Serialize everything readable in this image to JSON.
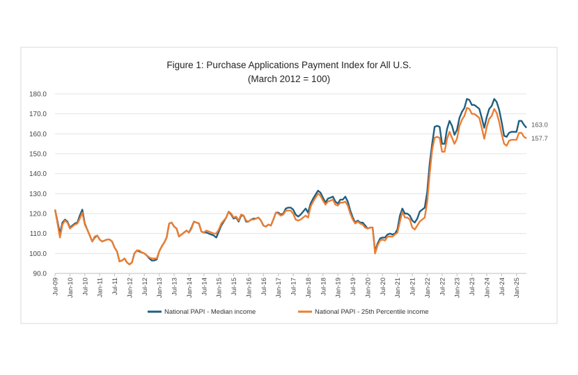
{
  "chart_data": {
    "type": "line",
    "title": "Figure 1: Purchase Applications Payment Index for All U.S.",
    "subtitle": "(March 2012 = 100)",
    "xlabel": "",
    "ylabel": "",
    "ylim": [
      90,
      180
    ],
    "yticks": [
      "90.0",
      "100.0",
      "110.0",
      "120.0",
      "130.0",
      "140.0",
      "150.0",
      "160.0",
      "170.0",
      "180.0"
    ],
    "xticks": [
      "Jul-09",
      "Jan-10",
      "Jul-10",
      "Jan-11",
      "Jul-11",
      "Jan-12",
      "Jul-12",
      "Jan-13",
      "Jul-13",
      "Jan-14",
      "Jul-14",
      "Jan-15",
      "Jul-15",
      "Jan-16",
      "Jul-16",
      "Jan-17",
      "Jul-17",
      "Jan-18",
      "Jul-18",
      "Jan-19",
      "Jul-19",
      "Jan-20",
      "Jul-20",
      "Jan-21",
      "Jul-21",
      "Jan-22",
      "Jul-22",
      "Jan-23",
      "Jul-23",
      "Jan-24",
      "Jul-24",
      "Jan-25"
    ],
    "x_start": "2009-07",
    "x_frequency": "monthly",
    "grid": true,
    "legend_position": "bottom",
    "series": [
      {
        "name": "National PAPI - Median income",
        "color": "#1f5f7f",
        "end_label": "163.0",
        "values": [
          122,
          116,
          110,
          115.5,
          117,
          116,
          113,
          114,
          115,
          115.5,
          119,
          122,
          115,
          112,
          109,
          106,
          108,
          109,
          107,
          106,
          106.5,
          107,
          107,
          106,
          103,
          101,
          96,
          96.5,
          97.5,
          95.5,
          94.5,
          95.5,
          100,
          101.5,
          101,
          100.5,
          100,
          99,
          97.5,
          96.5,
          96.5,
          97,
          101,
          103.5,
          105.5,
          108,
          115,
          115.5,
          113.5,
          112.5,
          108.5,
          109.5,
          110.5,
          111.5,
          110.5,
          113,
          116,
          115.5,
          115,
          111,
          110.5,
          110.5,
          110,
          109.5,
          109,
          108,
          111,
          114,
          116,
          118,
          121,
          119.5,
          117.5,
          118,
          116,
          119,
          119,
          116,
          116,
          117,
          117.5,
          117.5,
          118,
          116.5,
          114,
          113.5,
          114.5,
          114,
          117,
          120.5,
          120.5,
          119.5,
          120,
          122.5,
          123,
          123,
          122,
          119.5,
          118.5,
          119.5,
          121,
          122.5,
          120.5,
          125,
          127.5,
          129.5,
          131.5,
          130.5,
          128,
          125.5,
          127.5,
          128,
          128.5,
          126,
          125,
          127,
          127,
          128.5,
          126,
          121.5,
          118,
          115.5,
          116.5,
          115.5,
          115.5,
          114,
          112.5,
          113,
          113,
          101,
          105,
          107.5,
          108,
          108,
          109.5,
          110,
          109.5,
          110,
          112,
          119,
          122.5,
          120,
          120,
          119,
          116.5,
          115.5,
          117.5,
          121,
          122,
          123,
          131,
          145,
          155,
          163.5,
          164,
          163.5,
          155,
          155,
          162.5,
          166.5,
          164,
          159.5,
          162,
          168,
          171,
          173,
          177.5,
          177,
          174.5,
          174.5,
          173.5,
          172.5,
          168,
          163,
          168.5,
          172.5,
          174,
          177.5,
          176,
          172,
          166,
          159,
          158.5,
          160.5,
          161,
          161,
          161,
          166.5,
          166.5,
          164.5,
          163
        ]
      },
      {
        "name": "National PAPI - 25th Percentile income",
        "color": "#ed7d31",
        "end_label": "157.7",
        "values": [
          122,
          115,
          108,
          114.5,
          116.5,
          115.5,
          112.5,
          113.5,
          114.5,
          115,
          117.5,
          120.5,
          114.5,
          112,
          109,
          106,
          108.5,
          109,
          107,
          106,
          106.5,
          107,
          107,
          106,
          103,
          101,
          96,
          96.5,
          97.5,
          95.5,
          94.5,
          95.5,
          100,
          101.5,
          101.5,
          100.5,
          100,
          99,
          98,
          97.5,
          97.5,
          97.5,
          101,
          103.5,
          105.5,
          108,
          115,
          115.5,
          113.5,
          112.5,
          108.5,
          109.5,
          110.5,
          111.5,
          110.5,
          112.5,
          116,
          115.5,
          115,
          111,
          110.5,
          111.5,
          111,
          110.5,
          110,
          110,
          112,
          115,
          116.5,
          118,
          121,
          120,
          118,
          118.5,
          116.5,
          119.5,
          119,
          116.5,
          116,
          117,
          117,
          117.5,
          118,
          116.5,
          114,
          113.5,
          114.5,
          114,
          117,
          120.5,
          120,
          119,
          119.5,
          121.5,
          121.5,
          121.5,
          120,
          117,
          116.5,
          117,
          118,
          119,
          118,
          123.5,
          126,
          128,
          130,
          129,
          126.5,
          124.5,
          126,
          126.5,
          127,
          124.5,
          124,
          125.5,
          125.5,
          126,
          124,
          120,
          117,
          115,
          116,
          115,
          114.5,
          113,
          112.5,
          113,
          113,
          100,
          104,
          106.5,
          107,
          106.5,
          108.5,
          108.5,
          108.5,
          109.5,
          110.5,
          116,
          121,
          118,
          118,
          117,
          113,
          112,
          114,
          116,
          117,
          118,
          126,
          140,
          152,
          158,
          158.5,
          158,
          151,
          151,
          157.5,
          161,
          158,
          155,
          157.5,
          164,
          167,
          169,
          173,
          172.5,
          170,
          170,
          169,
          168,
          163,
          157.5,
          163.5,
          167.5,
          169,
          172.5,
          170.5,
          166,
          160,
          155,
          154,
          156.5,
          157,
          157,
          157,
          160.5,
          160.5,
          158.5,
          157.7
        ]
      }
    ]
  }
}
